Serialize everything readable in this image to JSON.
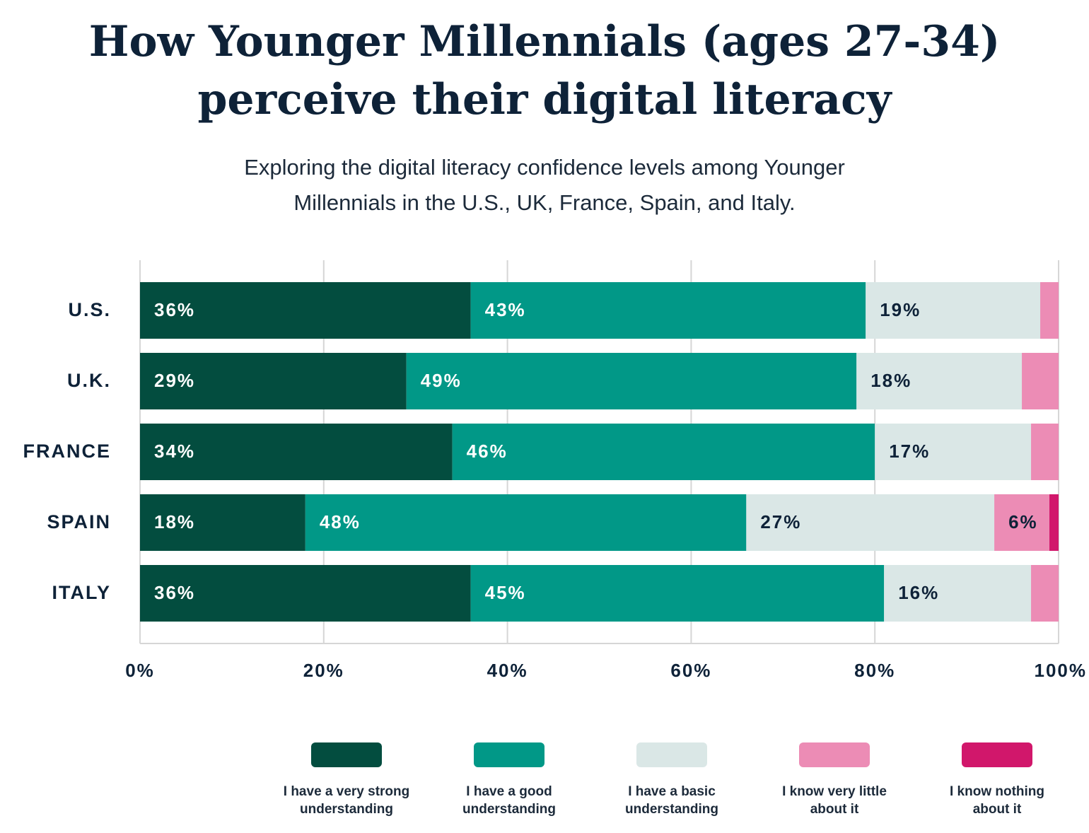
{
  "title_line1": "How Younger Millennials (ages 27-34)",
  "title_line2": "perceive their digital literacy",
  "subtitle_line1": "Exploring the digital literacy confidence levels among Younger",
  "subtitle_line2": "Millennials in the U.S., UK, France, Spain, and Italy.",
  "colors": {
    "very_strong": "#034d3f",
    "good": "#019887",
    "basic": "#dae7e6",
    "very_little": "#ec8cb5",
    "nothing": "#d1176b",
    "text_dark": "#0e2238",
    "grid": "#d6d6d6"
  },
  "chart_data": {
    "type": "bar",
    "orientation": "horizontal",
    "stacked": true,
    "title": "How Younger Millennials (ages 27-34) perceive their digital literacy",
    "subtitle": "Exploring the digital literacy confidence levels among Younger Millennials in the U.S., UK, France, Spain, and Italy.",
    "categories": [
      "U.S.",
      "U.K.",
      "FRANCE",
      "SPAIN",
      "ITALY"
    ],
    "series": [
      {
        "name": "I have a very strong understanding",
        "values": [
          36,
          29,
          34,
          18,
          36
        ],
        "labels": [
          "36%",
          "29%",
          "34%",
          "18%",
          "36%"
        ]
      },
      {
        "name": "I have a good understanding",
        "values": [
          43,
          49,
          46,
          48,
          45
        ],
        "labels": [
          "43%",
          "49%",
          "46%",
          "48%",
          "45%"
        ]
      },
      {
        "name": "I have a basic understanding",
        "values": [
          19,
          18,
          17,
          27,
          16
        ],
        "labels": [
          "19%",
          "18%",
          "17%",
          "27%",
          "16%"
        ]
      },
      {
        "name": "I know very little about it",
        "values": [
          2,
          4,
          3,
          6,
          3
        ],
        "labels": [
          "",
          "",
          "",
          "6%",
          ""
        ]
      },
      {
        "name": "I know nothing about it",
        "values": [
          0,
          0,
          0,
          1,
          0
        ],
        "labels": [
          "",
          "",
          "",
          "",
          ""
        ]
      }
    ],
    "xlim": [
      0,
      100
    ],
    "xticks": [
      0,
      20,
      40,
      60,
      80,
      100
    ],
    "xtick_labels": [
      "0%",
      "20%",
      "40%",
      "60%",
      "80%",
      "100%"
    ],
    "grid": true,
    "legend_position": "bottom"
  },
  "legend": [
    {
      "line1": "I have a very strong",
      "line2": "understanding",
      "color_key": "very_strong"
    },
    {
      "line1": "I have a good",
      "line2": "understanding",
      "color_key": "good"
    },
    {
      "line1": "I have a basic",
      "line2": "understanding",
      "color_key": "basic"
    },
    {
      "line1": "I know very little",
      "line2": "about it",
      "color_key": "very_little"
    },
    {
      "line1": "I know nothing",
      "line2": "about it",
      "color_key": "nothing"
    }
  ]
}
